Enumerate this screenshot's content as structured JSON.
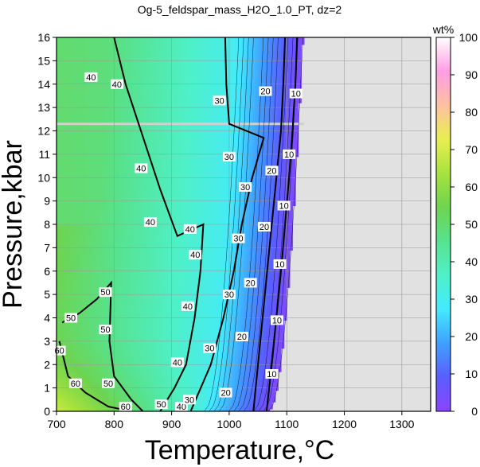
{
  "chart_data": {
    "type": "heatmap",
    "title": "Og-5_feldspar_mass_H2O_1.0_PT, dz=2",
    "xlabel": "Temperature,°C",
    "ylabel": "Pressure,kbar",
    "xlim": [
      700,
      1350
    ],
    "ylim": [
      0,
      16
    ],
    "x_ticks": [
      700,
      800,
      900,
      1000,
      1100,
      1200,
      1300
    ],
    "y_ticks": [
      0,
      1,
      2,
      3,
      4,
      5,
      6,
      7,
      8,
      9,
      10,
      11,
      12,
      13,
      14,
      15,
      16
    ],
    "grid": true,
    "colorbar": {
      "label": "wt%",
      "min": 0,
      "max": 100,
      "ticks": [
        0,
        10,
        20,
        30,
        40,
        50,
        60,
        70,
        80,
        90,
        100
      ]
    },
    "contour_interval": 2,
    "labeled_contours": [
      {
        "level": 10,
        "points": [
          [
            1065,
            0
          ],
          [
            1074,
            2
          ],
          [
            1082,
            4
          ],
          [
            1090,
            6
          ],
          [
            1097,
            8
          ],
          [
            1104,
            10
          ],
          [
            1110,
            12
          ],
          [
            1115,
            14
          ],
          [
            1118,
            16
          ]
        ]
      },
      {
        "level": 20,
        "points": [
          [
            1042,
            0
          ],
          [
            1050,
            2
          ],
          [
            1058,
            4
          ],
          [
            1066,
            6
          ],
          [
            1074,
            8
          ],
          [
            1082,
            10
          ],
          [
            1090,
            12
          ],
          [
            1094,
            14
          ],
          [
            1097,
            16
          ]
        ]
      },
      {
        "level": 30,
        "points": [
          [
            933,
            0
          ],
          [
            968,
            2
          ],
          [
            990,
            4
          ],
          [
            1008,
            6
          ],
          [
            1022,
            8
          ],
          [
            1040,
            10
          ],
          [
            1060,
            11.7
          ],
          [
            1000,
            12.3
          ],
          [
            995,
            14
          ],
          [
            993,
            16
          ]
        ]
      },
      {
        "level": 40,
        "points": [
          [
            880,
            0
          ],
          [
            905,
            1
          ],
          [
            925,
            2
          ],
          [
            940,
            4
          ],
          [
            950,
            6
          ],
          [
            955,
            8
          ],
          [
            910,
            7.5
          ],
          [
            895,
            8.5
          ],
          [
            880,
            9.5
          ],
          [
            820,
            14
          ],
          [
            800,
            16
          ]
        ]
      },
      {
        "level": 50,
        "points": [
          [
            850,
            0
          ],
          [
            830,
            0.5
          ],
          [
            800,
            1.5
          ],
          [
            792,
            3
          ],
          [
            795,
            5.5
          ],
          [
            770,
            4.8
          ],
          [
            740,
            4.2
          ],
          [
            710,
            3.8
          ]
        ]
      },
      {
        "level": 60,
        "points": [
          [
            830,
            0
          ],
          [
            790,
            0.2
          ],
          [
            750,
            0.8
          ],
          [
            720,
            1.5
          ],
          [
            705,
            3
          ]
        ]
      }
    ],
    "contour_label_positions": [
      {
        "text": "40",
        "x": 760,
        "y": 14.3
      },
      {
        "text": "40",
        "x": 805,
        "y": 14.0
      },
      {
        "text": "40",
        "x": 847,
        "y": 10.4
      },
      {
        "text": "40",
        "x": 863,
        "y": 8.1
      },
      {
        "text": "40",
        "x": 932,
        "y": 7.8
      },
      {
        "text": "40",
        "x": 941,
        "y": 6.7
      },
      {
        "text": "40",
        "x": 928,
        "y": 4.5
      },
      {
        "text": "40",
        "x": 910,
        "y": 2.1
      },
      {
        "text": "40",
        "x": 917,
        "y": 0.2
      },
      {
        "text": "50",
        "x": 785,
        "y": 5.1
      },
      {
        "text": "50",
        "x": 725,
        "y": 4.0
      },
      {
        "text": "50",
        "x": 785,
        "y": 3.5
      },
      {
        "text": "50",
        "x": 790,
        "y": 1.2
      },
      {
        "text": "50",
        "x": 882,
        "y": 0.3
      },
      {
        "text": "60",
        "x": 705,
        "y": 2.6
      },
      {
        "text": "60",
        "x": 733,
        "y": 1.2
      },
      {
        "text": "60",
        "x": 820,
        "y": 0.2
      },
      {
        "text": "30",
        "x": 983,
        "y": 13.3
      },
      {
        "text": "30",
        "x": 1000,
        "y": 10.9
      },
      {
        "text": "30",
        "x": 1028,
        "y": 9.6
      },
      {
        "text": "30",
        "x": 1016,
        "y": 7.4
      },
      {
        "text": "30",
        "x": 1000,
        "y": 5.0
      },
      {
        "text": "30",
        "x": 966,
        "y": 2.7
      },
      {
        "text": "30",
        "x": 931,
        "y": 0.5
      },
      {
        "text": "20",
        "x": 1063,
        "y": 13.7
      },
      {
        "text": "20",
        "x": 1074,
        "y": 10.3
      },
      {
        "text": "20",
        "x": 1061,
        "y": 7.9
      },
      {
        "text": "20",
        "x": 1037,
        "y": 5.5
      },
      {
        "text": "20",
        "x": 1022,
        "y": 3.2
      },
      {
        "text": "20",
        "x": 994,
        "y": 0.8
      },
      {
        "text": "10",
        "x": 1116,
        "y": 13.6
      },
      {
        "text": "10",
        "x": 1104,
        "y": 11.0
      },
      {
        "text": "10",
        "x": 1095,
        "y": 8.8
      },
      {
        "text": "10",
        "x": 1088,
        "y": 6.3
      },
      {
        "text": "10",
        "x": 1083,
        "y": 3.9
      },
      {
        "text": "10",
        "x": 1074,
        "y": 1.6
      }
    ],
    "colors": {
      "no_data": "#e1e1e1",
      "grid": "#999999",
      "gap_line": "#d0d0d0",
      "colormap": [
        "#8a44ff",
        "#5a5dff",
        "#3fa0ff",
        "#43eaff",
        "#4ff0c8",
        "#57e28f",
        "#6ed44f",
        "#a8e23d",
        "#e8ef4f",
        "#ffc0a0",
        "#ff9de4",
        "#ffffff"
      ]
    }
  }
}
